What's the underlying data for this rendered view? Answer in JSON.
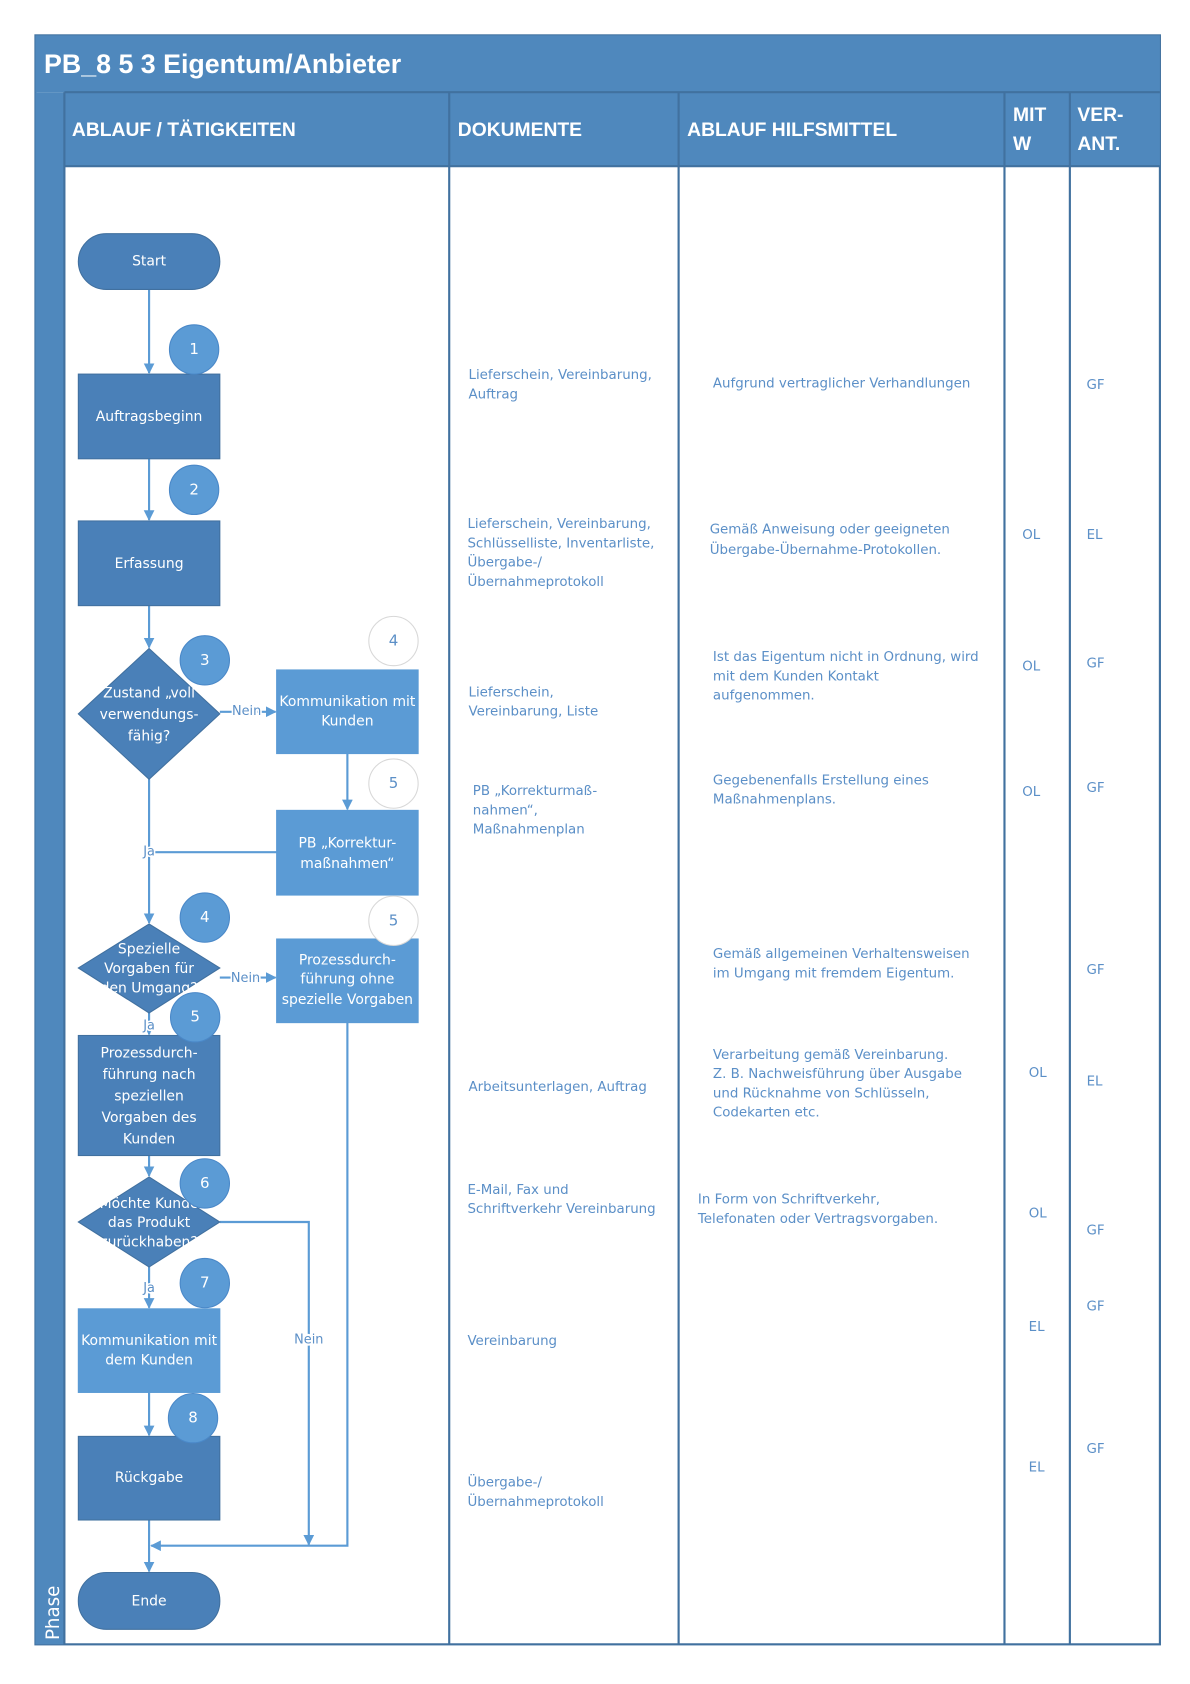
{
  "title": "PB_8 5 3 Eigentum/Anbieter",
  "phase_label": "Phase",
  "columns": {
    "ablauf": "ABLAUF / TÄTIGKEITEN",
    "dokumente": "DOKUMENTE",
    "hilfsmittel": "ABLAUF HILFSMITTEL",
    "mitw": [
      "MIT",
      "W"
    ],
    "verant": [
      "VER-",
      "ANT."
    ]
  },
  "colors": {
    "header": "#4f88bd",
    "dark_shape": "#4a80b8",
    "light_shape": "#5b9bd5",
    "text": "#5b8fc7"
  },
  "flow": {
    "start": "Start",
    "end": "Ende",
    "auftragsbeginn": "Auftragsbeginn",
    "erfassung": "Erfassung",
    "decision1": [
      "Zustand „voll",
      "verwendungs-",
      "fähig?"
    ],
    "komm_kunden": [
      "Kommunikation mit",
      "Kunden"
    ],
    "pb_korrektur": [
      "PB „Korrektur-",
      "maßnahmen“"
    ],
    "decision2": [
      "Spezielle",
      "Vorgaben für",
      "den Umgang?"
    ],
    "prozess_ohne": [
      "Prozessdurch-",
      "führung ohne",
      "spezielle Vorgaben"
    ],
    "prozess_nach": [
      "Prozessdurch-",
      "führung nach",
      "speziellen",
      "Vorgaben des",
      "Kunden"
    ],
    "decision3": [
      "Möchte Kunde",
      "das Produkt",
      "zurückhaben?"
    ],
    "komm_dem_kunden": [
      "Kommunikation mit",
      "dem Kunden"
    ],
    "rueckgabe": "Rückgabe",
    "yes": "Ja",
    "no": "Nein",
    "steps": [
      "1",
      "2",
      "3",
      "4",
      "4",
      "5",
      "5",
      "5",
      "6",
      "7",
      "8"
    ]
  },
  "rows": [
    {
      "docs": [
        "Lieferschein, Vereinbarung,",
        "Auftrag"
      ],
      "help": [
        "Aufgrund vertraglicher Verhandlungen"
      ],
      "mitw": "",
      "verant": "GF"
    },
    {
      "docs": [
        "Lieferschein, Vereinbarung,",
        "Schlüsselliste, Inventarliste,",
        "Übergabe-/",
        "Übernahmeprotokoll"
      ],
      "help": [
        "Gemäß Anweisung oder geeigneten",
        "Übergabe-Übernahme-Protokollen."
      ],
      "mitw": "OL",
      "verant": "EL"
    },
    {
      "docs": [
        "Lieferschein,",
        "Vereinbarung, Liste"
      ],
      "help": [
        "Ist das Eigentum nicht in Ordnung, wird",
        "mit dem Kunden Kontakt",
        "aufgenommen."
      ],
      "mitw": "OL",
      "verant": "GF"
    },
    {
      "docs": [
        "PB „Korrekturmaß-",
        "nahmen“,",
        "Maßnahmenplan"
      ],
      "help": [
        "Gegebenenfalls Erstellung eines",
        "Maßnahmenplans."
      ],
      "mitw": "OL",
      "verant": "GF"
    },
    {
      "docs": [],
      "help": [
        "Gemäß allgemeinen Verhaltensweisen",
        "im Umgang mit fremdem Eigentum."
      ],
      "mitw": "",
      "verant": "GF"
    },
    {
      "docs": [
        "Arbeitsunterlagen, Auftrag"
      ],
      "help": [
        "Verarbeitung gemäß Vereinbarung.",
        "Z. B. Nachweisführung über Ausgabe",
        "und Rücknahme von Schlüsseln,",
        "Codekarten etc."
      ],
      "mitw": "OL",
      "verant": "EL"
    },
    {
      "docs": [
        "E-Mail, Fax und",
        "Schriftverkehr Vereinbarung"
      ],
      "help": [
        "In Form von Schriftverkehr,",
        "Telefonaten oder Vertragsvorgaben."
      ],
      "mitw": "OL",
      "verant": "GF"
    },
    {
      "docs": [
        "Vereinbarung"
      ],
      "help": [],
      "mitw": "EL",
      "verant": "GF"
    },
    {
      "docs": [
        "Übergabe-/",
        "Übernahmeprotokoll"
      ],
      "help": [],
      "mitw": "EL",
      "verant": "GF"
    }
  ]
}
